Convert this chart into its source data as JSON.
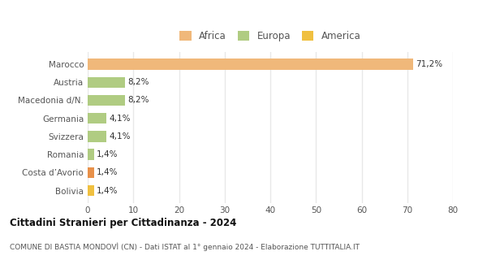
{
  "categories": [
    "Bolivia",
    "Costa d’Avorio",
    "Romania",
    "Svizzera",
    "Germania",
    "Macedonia d/N.",
    "Austria",
    "Marocco"
  ],
  "values": [
    1.4,
    1.4,
    1.4,
    4.1,
    4.1,
    8.2,
    8.2,
    71.2
  ],
  "colors": [
    "#f0c040",
    "#e8914a",
    "#b0cc82",
    "#b0cc82",
    "#b0cc82",
    "#b0cc82",
    "#b0cc82",
    "#f0b87a"
  ],
  "labels": [
    "1,4%",
    "1,4%",
    "1,4%",
    "4,1%",
    "4,1%",
    "8,2%",
    "8,2%",
    "71,2%"
  ],
  "legend": [
    {
      "label": "Africa",
      "color": "#f0b87a"
    },
    {
      "label": "Europa",
      "color": "#b0cc82"
    },
    {
      "label": "America",
      "color": "#f0c040"
    }
  ],
  "xlim": [
    0,
    80
  ],
  "xticks": [
    0,
    10,
    20,
    30,
    40,
    50,
    60,
    70,
    80
  ],
  "title": "Cittadini Stranieri per Cittadinanza - 2024",
  "subtitle": "COMUNE DI BASTIA MONDOVÌ (CN) - Dati ISTAT al 1° gennaio 2024 - Elaborazione TUTTITALIA.IT",
  "background_color": "#ffffff",
  "grid_color": "#e8e8e8",
  "bar_height": 0.6
}
